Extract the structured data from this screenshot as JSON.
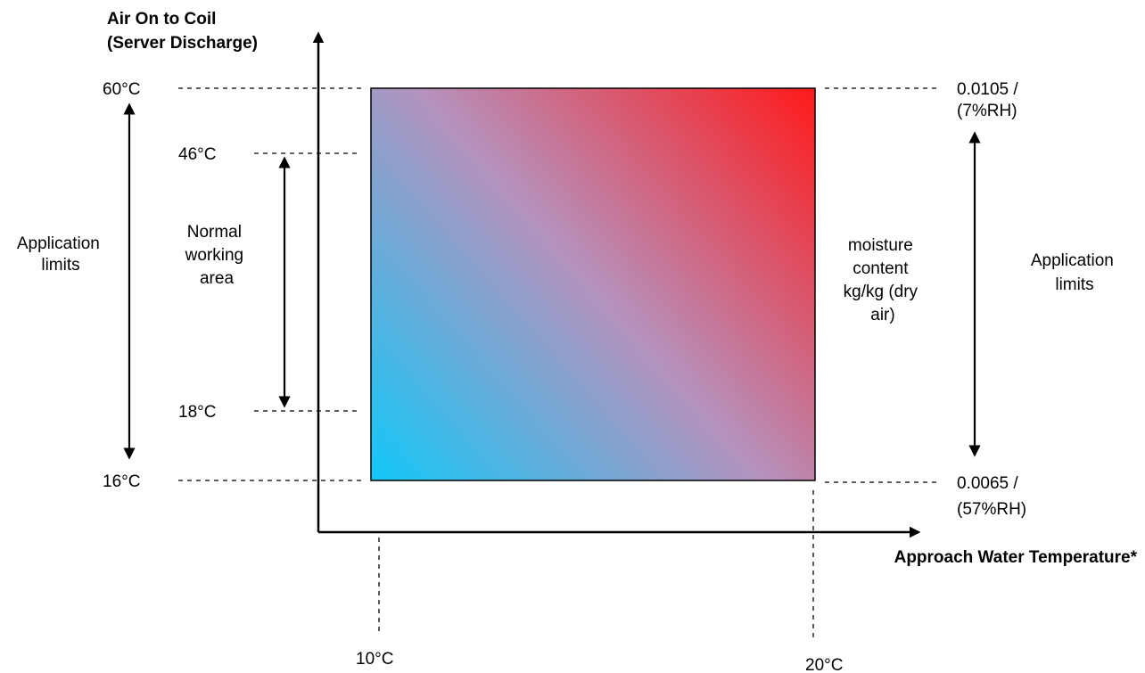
{
  "y_axis_title": [
    "Air On to Coil",
    "(Server Discharge)"
  ],
  "x_axis_title": "Approach Water Temperature*",
  "left_ticks": {
    "t60": "60°C",
    "t46": "46°C",
    "t18": "18°C",
    "t16": "16°C"
  },
  "bottom_ticks": {
    "t10": "10°C",
    "t20": "20°C"
  },
  "right_ticks": {
    "top": [
      "0.0105 /",
      "(7%RH)"
    ],
    "bottom": [
      "0.0065 /",
      "(57%RH)"
    ]
  },
  "left_application_limits": [
    "Application",
    "limits"
  ],
  "normal_working_area": [
    "Normal",
    "working",
    "area"
  ],
  "moisture_label": [
    "moisture",
    "content",
    "kg/kg (dry",
    "air)"
  ],
  "right_application_limits": [
    "Application",
    "limits"
  ],
  "colors": {
    "gradient_low": "#12C8F8",
    "gradient_mid": "#B592BD",
    "gradient_high": "#FF1A1A",
    "line": "#000000"
  }
}
